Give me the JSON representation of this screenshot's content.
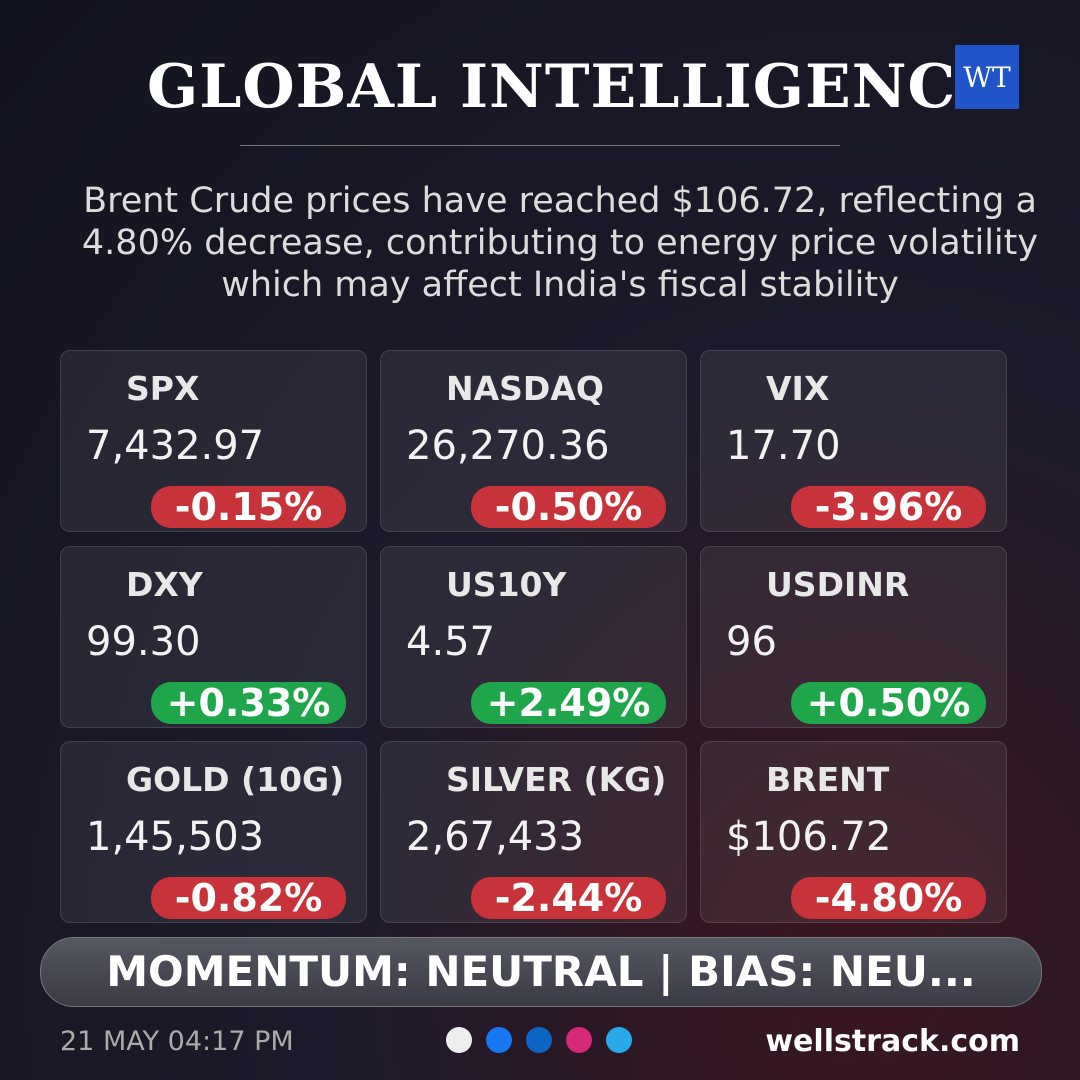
{
  "header": {
    "title": "GLOBAL INTELLIGENCE",
    "logo": "WT"
  },
  "summary": "Brent Crude prices have reached $106.72, reflecting a 4.80% decrease, contributing to energy price volatility which may affect India's fiscal stability",
  "cards": [
    {
      "label": "SPX",
      "value": "7,432.97",
      "change": "-0.15%",
      "color": "#c8333a"
    },
    {
      "label": "NASDAQ",
      "value": "26,270.36",
      "change": "-0.50%",
      "color": "#c8333a"
    },
    {
      "label": "VIX",
      "value": "17.70",
      "change": "-3.96%",
      "color": "#c8333a"
    },
    {
      "label": "DXY",
      "value": "99.30",
      "change": "+0.33%",
      "color": "#1fa64a"
    },
    {
      "label": "US10Y",
      "value": "4.57",
      "change": "+2.49%",
      "color": "#1fa64a"
    },
    {
      "label": "USDINR",
      "value": "96",
      "change": "+0.50%",
      "color": "#1fa64a"
    },
    {
      "label": "GOLD (10G)",
      "value": "1,45,503",
      "change": "-0.82%",
      "color": "#c8333a"
    },
    {
      "label": "SILVER (KG)",
      "value": "2,67,433",
      "change": "-2.44%",
      "color": "#c8333a"
    },
    {
      "label": "BRENT",
      "value": "$106.72",
      "change": "-4.80%",
      "color": "#c8333a"
    }
  ],
  "banner": "MOMENTUM: NEUTRAL | BIAS: NEU...",
  "footer": {
    "date": "21 MAY 04:17 PM",
    "website": "wellstrack.com"
  }
}
